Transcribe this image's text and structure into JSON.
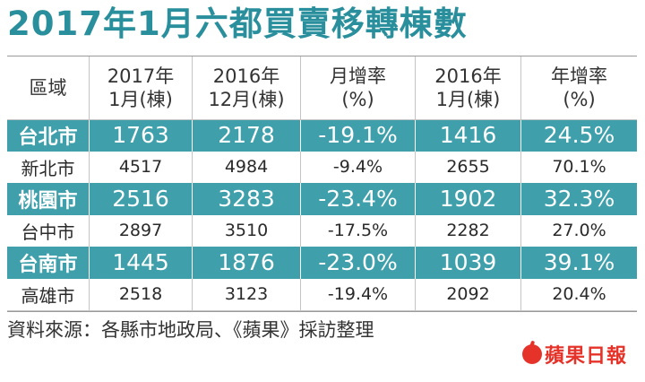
{
  "title": "2017年1月六都買賣移轉棟數",
  "header": {
    "region": "區域",
    "col1": [
      "2017年",
      "1月(棟)"
    ],
    "col2": [
      "2016年",
      "12月(棟)"
    ],
    "col3": [
      "月增率",
      "(%)"
    ],
    "col4": [
      "2016年",
      "1月(棟)"
    ],
    "col5": [
      "年增率",
      "(%)"
    ]
  },
  "rows": [
    {
      "region": "台北市",
      "jan2017": "1763",
      "dec2016": "2178",
      "mom": "-19.1%",
      "jan2016": "1416",
      "yoy": "24.5%",
      "highlight": true
    },
    {
      "region": "新北市",
      "jan2017": "4517",
      "dec2016": "4984",
      "mom": "-9.4%",
      "jan2016": "2655",
      "yoy": "70.1%",
      "highlight": false
    },
    {
      "region": "桃園市",
      "jan2017": "2516",
      "dec2016": "3283",
      "mom": "-23.4%",
      "jan2016": "1902",
      "yoy": "32.3%",
      "highlight": true
    },
    {
      "region": "台中市",
      "jan2017": "2897",
      "dec2016": "3510",
      "mom": "-17.5%",
      "jan2016": "2282",
      "yoy": "27.0%",
      "highlight": false
    },
    {
      "region": "台南市",
      "jan2017": "1445",
      "dec2016": "1876",
      "mom": "-23.0%",
      "jan2016": "1039",
      "yoy": "39.1%",
      "highlight": true
    },
    {
      "region": "高雄市",
      "jan2017": "2518",
      "dec2016": "3123",
      "mom": "-19.4%",
      "jan2016": "2092",
      "yoy": "20.4%",
      "highlight": false
    }
  ],
  "source": "資料來源：各縣市地政局、《蘋果》採訪整理",
  "logo": {
    "text": "蘋果日報",
    "icon": "apple-icon",
    "color": "#e6332a"
  },
  "colors": {
    "accent": "#3fa0ac",
    "title": "#2a8f9c"
  }
}
